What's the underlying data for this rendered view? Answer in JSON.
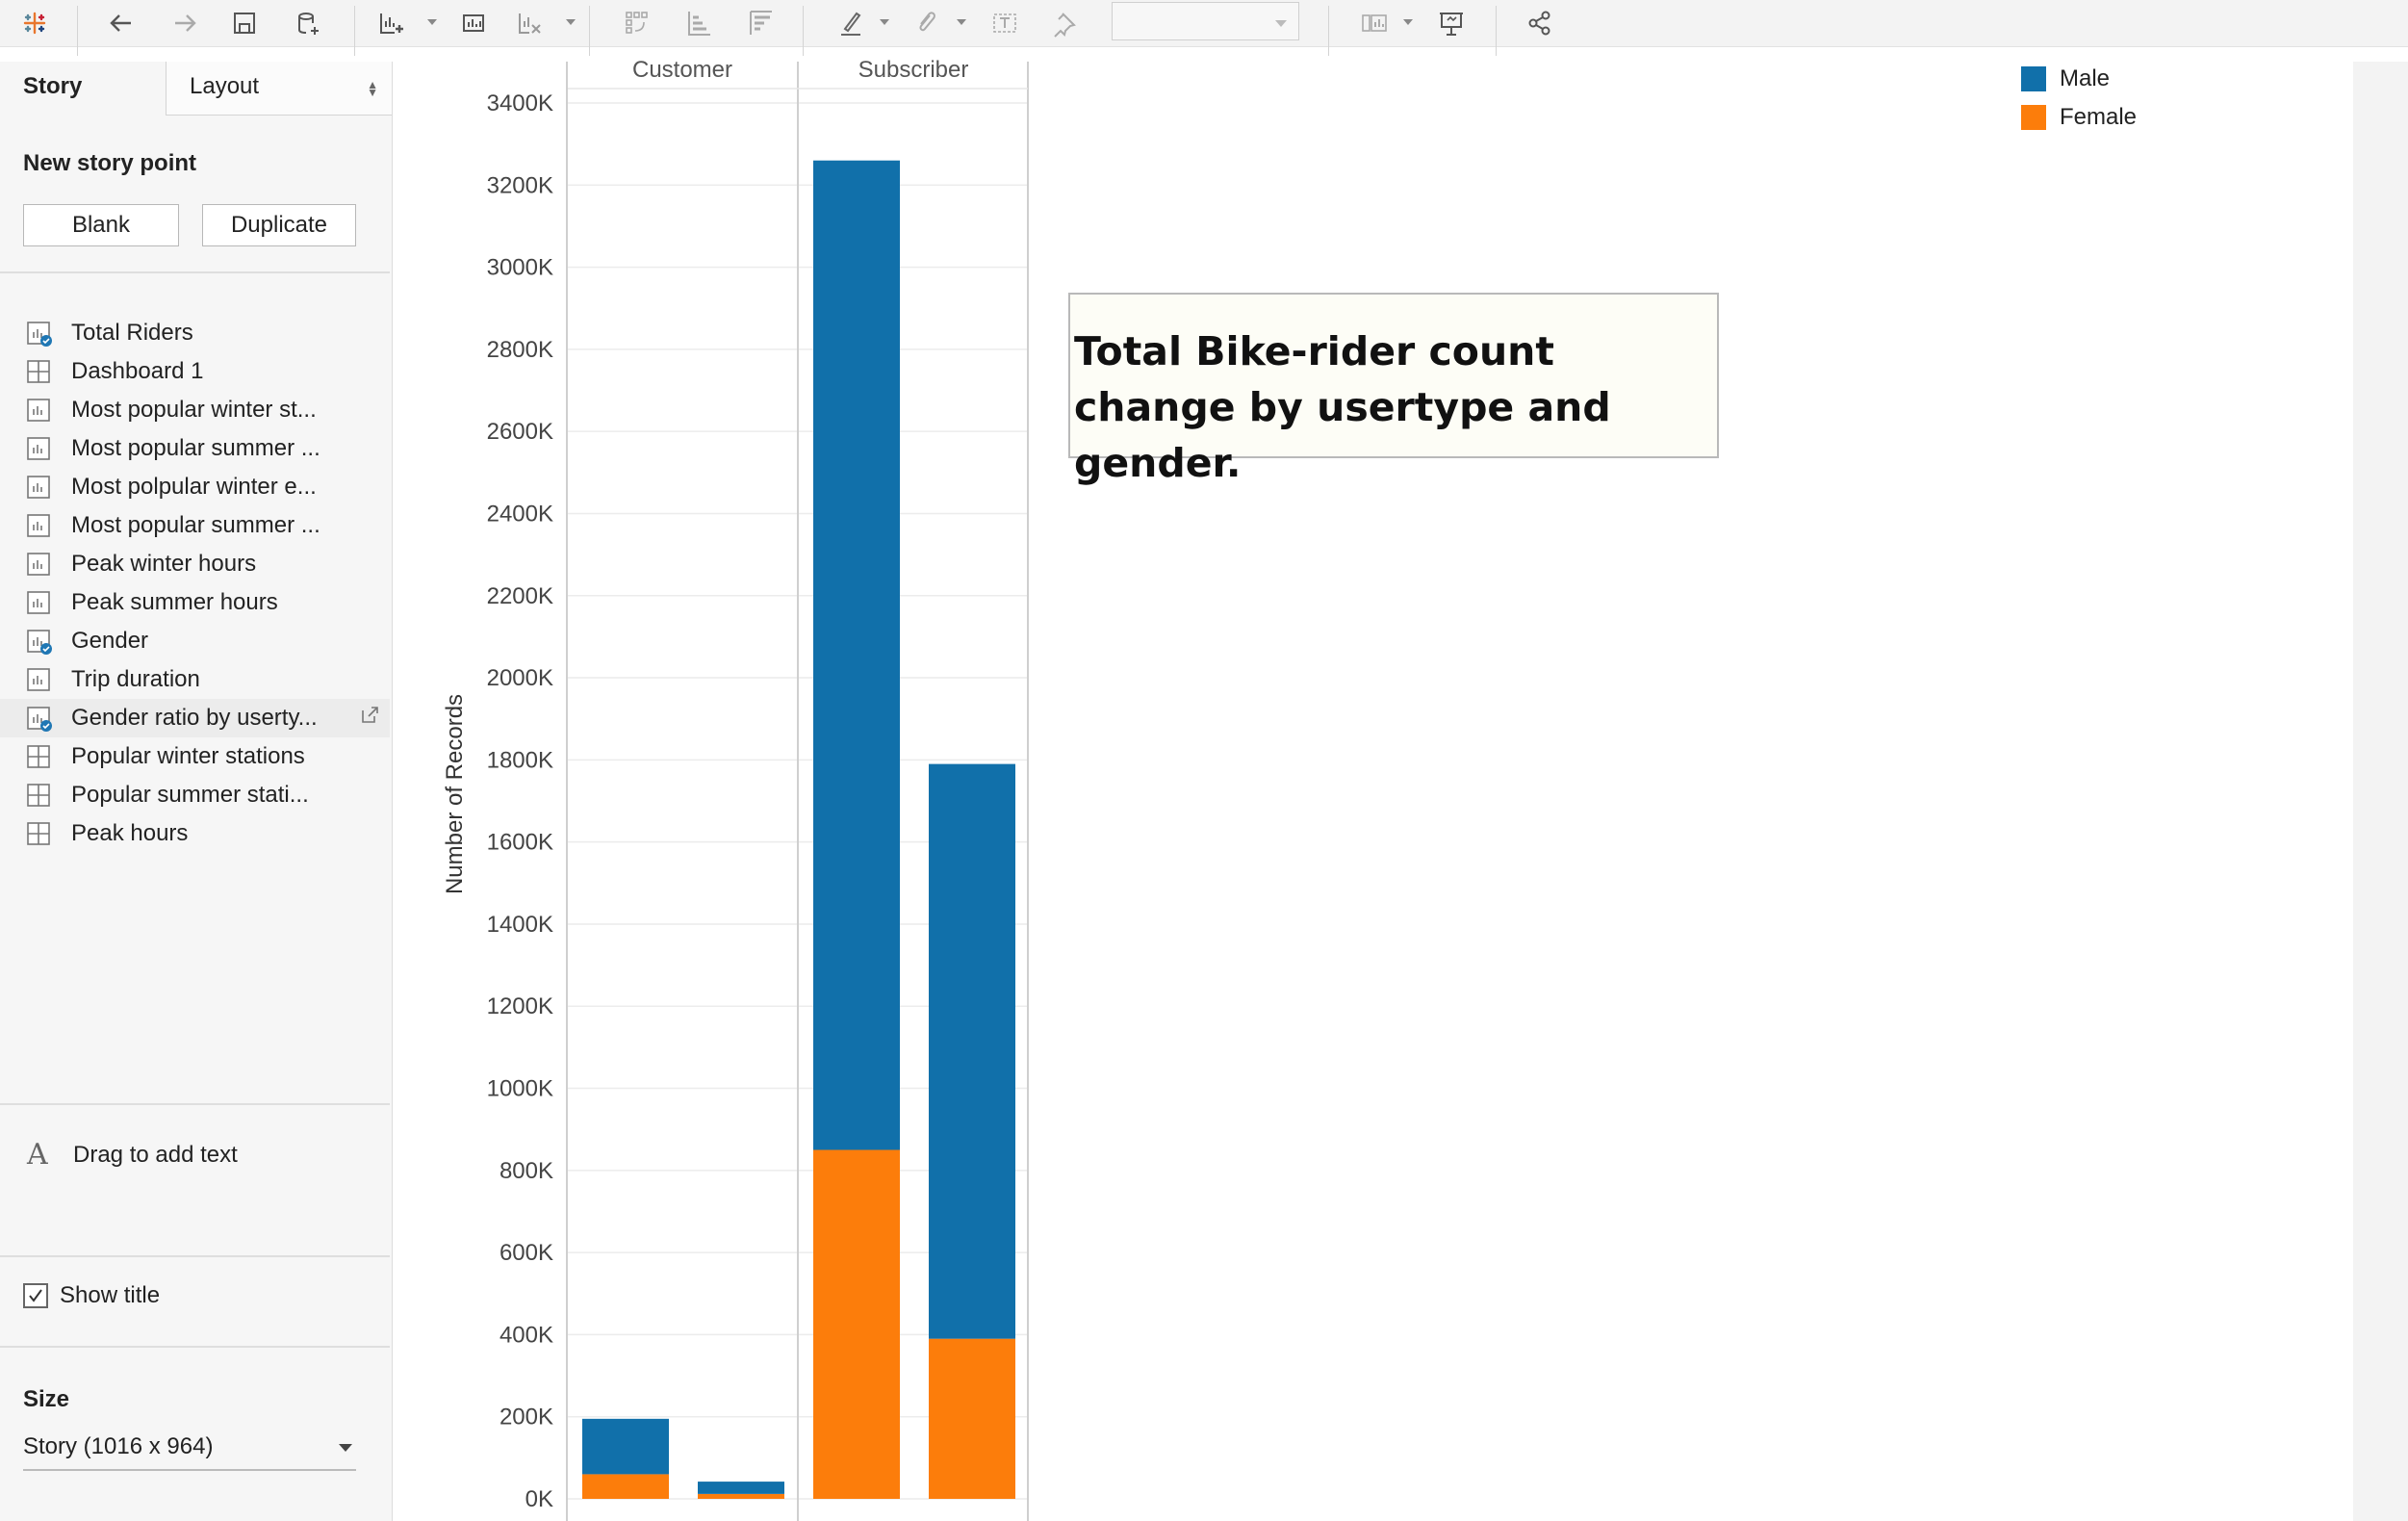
{
  "toolbar": {
    "icons": [
      "tableau-logo-icon",
      "undo-icon",
      "redo-icon",
      "save-icon",
      "new-data-source-icon",
      "new-worksheet-icon",
      "new-dashboard-icon",
      "clear-sheet-icon",
      "swap-rows-columns-icon",
      "sort-ascending-icon",
      "sort-descending-icon",
      "highlight-icon",
      "group-icon",
      "show-labels-icon",
      "pin-axes-icon",
      "fit-dropdown",
      "show-cards-icon",
      "presentation-mode-icon",
      "share-icon"
    ]
  },
  "side_panel": {
    "tab_story": "Story",
    "tab_layout": "Layout",
    "new_story_point_title": "New story point",
    "blank_button": "Blank",
    "duplicate_button": "Duplicate",
    "sheets": [
      {
        "label": "Total Riders",
        "icon": "worksheet-used-icon"
      },
      {
        "label": "Dashboard 1",
        "icon": "dashboard-icon"
      },
      {
        "label": "Most popular winter st...",
        "icon": "worksheet-icon"
      },
      {
        "label": "Most popular summer ...",
        "icon": "worksheet-icon"
      },
      {
        "label": "Most polpular winter e...",
        "icon": "worksheet-icon"
      },
      {
        "label": "Most popular summer ...",
        "icon": "worksheet-icon"
      },
      {
        "label": "Peak winter hours",
        "icon": "worksheet-icon"
      },
      {
        "label": "Peak summer hours",
        "icon": "worksheet-icon"
      },
      {
        "label": "Gender",
        "icon": "worksheet-used-icon"
      },
      {
        "label": "Trip duration",
        "icon": "worksheet-icon"
      },
      {
        "label": "Gender ratio by userty...",
        "icon": "worksheet-used-icon"
      },
      {
        "label": "Popular winter stations",
        "icon": "dashboard-icon"
      },
      {
        "label": "Popular summer stati...",
        "icon": "dashboard-icon"
      },
      {
        "label": "Peak hours",
        "icon": "dashboard-icon"
      }
    ],
    "drag_text_label": "Drag to add text",
    "show_title_label": "Show title",
    "show_title_checked": true,
    "size_title": "Size",
    "size_value": "Story (1016 x 964)"
  },
  "legend": {
    "items": [
      {
        "label": "Male",
        "color": "#1170aa"
      },
      {
        "label": "Female",
        "color": "#fc7d0b"
      }
    ]
  },
  "annotation": {
    "text": "Total Bike-rider count change by usertype and gender."
  },
  "chart_data": {
    "type": "bar",
    "stacked": true,
    "panes": [
      "Customer",
      "Subscriber"
    ],
    "ylabel": "Number of Records",
    "ylim": [
      0,
      3400000
    ],
    "yticks": [
      "0K",
      "200K",
      "400K",
      "600K",
      "800K",
      "1000K",
      "1200K",
      "1400K",
      "1600K",
      "1800K",
      "2000K",
      "2200K",
      "2400K",
      "2600K",
      "2800K",
      "3000K",
      "3200K",
      "3400K"
    ],
    "bars": [
      {
        "pane": "Customer",
        "male": 135000,
        "female": 60000
      },
      {
        "pane": "Customer",
        "male": 30000,
        "female": 12000
      },
      {
        "pane": "Subscriber",
        "male": 2410000,
        "female": 850000
      },
      {
        "pane": "Subscriber",
        "male": 1400000,
        "female": 390000
      }
    ],
    "colors": {
      "male": "#1170aa",
      "female": "#fc7d0b"
    },
    "grid": true
  }
}
